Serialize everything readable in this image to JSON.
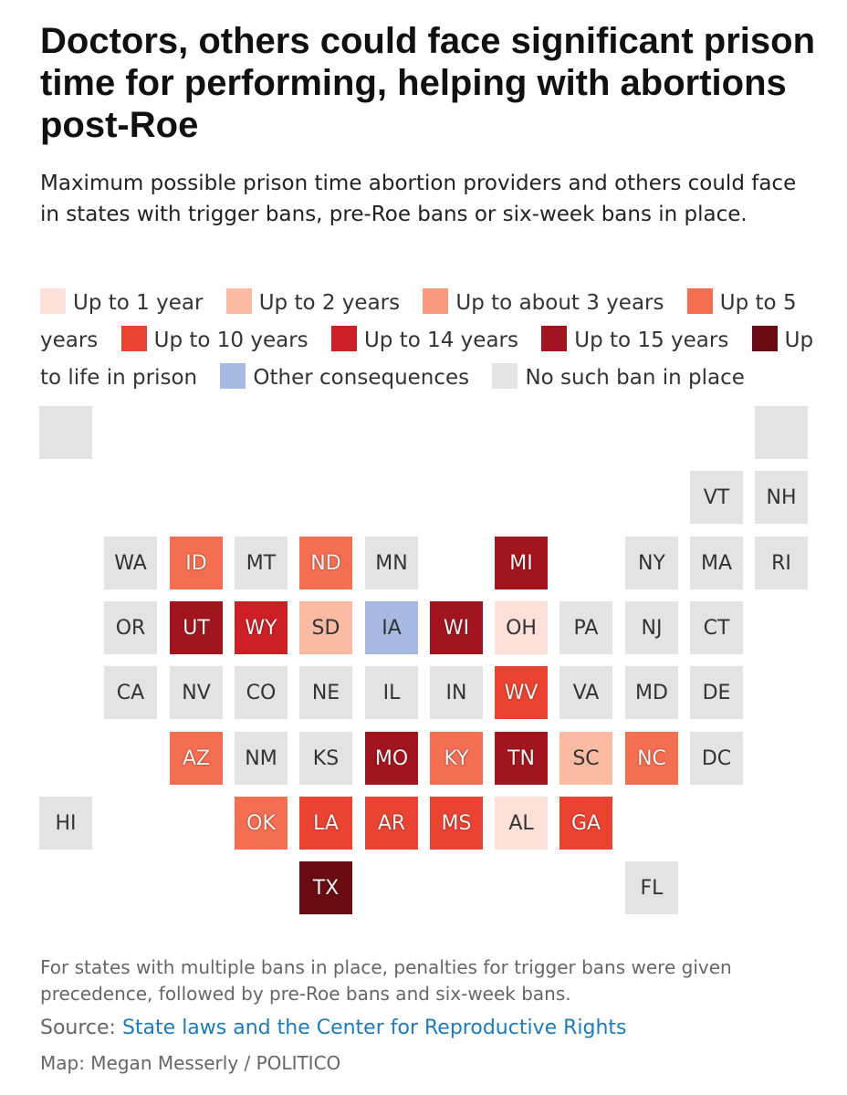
{
  "title": "Doctors, others could face significant prison time for performing, helping with abortions post-Roe",
  "subtitle": "Maximum possible prison time abortion providers and others could face in states with trigger bans, pre-Roe bans or six-week bans in place.",
  "legend": [
    {
      "key": "1yr",
      "label": "Up to 1 year",
      "color": "#fde0d7"
    },
    {
      "key": "2yr",
      "label": "Up to 2 years",
      "color": "#fbbba3"
    },
    {
      "key": "3yr",
      "label": "Up to about 3 years",
      "color": "#f99a7f"
    },
    {
      "key": "5yr",
      "label": "Up to 5 years",
      "color": "#f46e52"
    },
    {
      "key": "10yr",
      "label": "Up to 10 years",
      "color": "#ea4332"
    },
    {
      "key": "14yr",
      "label": "Up to 14 years",
      "color": "#cd1f25"
    },
    {
      "key": "15yr",
      "label": "Up to 15 years",
      "color": "#a3151e"
    },
    {
      "key": "life",
      "label": "Up to life in prison",
      "color": "#6b0b12"
    },
    {
      "key": "other",
      "label": "Other consequences",
      "color": "#a7b9e3"
    },
    {
      "key": "none",
      "label": "No such ban in place",
      "color": "#e3e3e3"
    }
  ],
  "states": [
    {
      "abbr": "",
      "cat": "none",
      "row": 0,
      "col": 0
    },
    {
      "abbr": "",
      "cat": "none",
      "row": 0,
      "col": 11
    },
    {
      "abbr": "VT",
      "cat": "none",
      "row": 1,
      "col": 10
    },
    {
      "abbr": "NH",
      "cat": "none",
      "row": 1,
      "col": 11
    },
    {
      "abbr": "WA",
      "cat": "none",
      "row": 2,
      "col": 1
    },
    {
      "abbr": "ID",
      "cat": "5yr",
      "row": 2,
      "col": 2
    },
    {
      "abbr": "MT",
      "cat": "none",
      "row": 2,
      "col": 3
    },
    {
      "abbr": "ND",
      "cat": "5yr",
      "row": 2,
      "col": 4
    },
    {
      "abbr": "MN",
      "cat": "none",
      "row": 2,
      "col": 5
    },
    {
      "abbr": "MI",
      "cat": "15yr",
      "row": 2,
      "col": 7
    },
    {
      "abbr": "NY",
      "cat": "none",
      "row": 2,
      "col": 9
    },
    {
      "abbr": "MA",
      "cat": "none",
      "row": 2,
      "col": 10
    },
    {
      "abbr": "RI",
      "cat": "none",
      "row": 2,
      "col": 11
    },
    {
      "abbr": "OR",
      "cat": "none",
      "row": 3,
      "col": 1
    },
    {
      "abbr": "UT",
      "cat": "15yr",
      "row": 3,
      "col": 2
    },
    {
      "abbr": "WY",
      "cat": "14yr",
      "row": 3,
      "col": 3
    },
    {
      "abbr": "SD",
      "cat": "2yr",
      "row": 3,
      "col": 4
    },
    {
      "abbr": "IA",
      "cat": "other",
      "row": 3,
      "col": 5
    },
    {
      "abbr": "WI",
      "cat": "15yr",
      "row": 3,
      "col": 6
    },
    {
      "abbr": "OH",
      "cat": "1yr",
      "row": 3,
      "col": 7
    },
    {
      "abbr": "PA",
      "cat": "none",
      "row": 3,
      "col": 8
    },
    {
      "abbr": "NJ",
      "cat": "none",
      "row": 3,
      "col": 9
    },
    {
      "abbr": "CT",
      "cat": "none",
      "row": 3,
      "col": 10
    },
    {
      "abbr": "CA",
      "cat": "none",
      "row": 4,
      "col": 1
    },
    {
      "abbr": "NV",
      "cat": "none",
      "row": 4,
      "col": 2
    },
    {
      "abbr": "CO",
      "cat": "none",
      "row": 4,
      "col": 3
    },
    {
      "abbr": "NE",
      "cat": "none",
      "row": 4,
      "col": 4
    },
    {
      "abbr": "IL",
      "cat": "none",
      "row": 4,
      "col": 5
    },
    {
      "abbr": "IN",
      "cat": "none",
      "row": 4,
      "col": 6
    },
    {
      "abbr": "WV",
      "cat": "10yr",
      "row": 4,
      "col": 7
    },
    {
      "abbr": "VA",
      "cat": "none",
      "row": 4,
      "col": 8
    },
    {
      "abbr": "MD",
      "cat": "none",
      "row": 4,
      "col": 9
    },
    {
      "abbr": "DE",
      "cat": "none",
      "row": 4,
      "col": 10
    },
    {
      "abbr": "AZ",
      "cat": "5yr",
      "row": 5,
      "col": 2
    },
    {
      "abbr": "NM",
      "cat": "none",
      "row": 5,
      "col": 3
    },
    {
      "abbr": "KS",
      "cat": "none",
      "row": 5,
      "col": 4
    },
    {
      "abbr": "MO",
      "cat": "15yr",
      "row": 5,
      "col": 5
    },
    {
      "abbr": "KY",
      "cat": "5yr",
      "row": 5,
      "col": 6
    },
    {
      "abbr": "TN",
      "cat": "15yr",
      "row": 5,
      "col": 7
    },
    {
      "abbr": "SC",
      "cat": "2yr",
      "row": 5,
      "col": 8
    },
    {
      "abbr": "NC",
      "cat": "5yr",
      "row": 5,
      "col": 9
    },
    {
      "abbr": "DC",
      "cat": "none",
      "row": 5,
      "col": 10
    },
    {
      "abbr": "HI",
      "cat": "none",
      "row": 6,
      "col": 0
    },
    {
      "abbr": "OK",
      "cat": "5yr",
      "row": 6,
      "col": 3
    },
    {
      "abbr": "LA",
      "cat": "10yr",
      "row": 6,
      "col": 4
    },
    {
      "abbr": "AR",
      "cat": "10yr",
      "row": 6,
      "col": 5
    },
    {
      "abbr": "MS",
      "cat": "10yr",
      "row": 6,
      "col": 6
    },
    {
      "abbr": "AL",
      "cat": "1yr",
      "row": 6,
      "col": 7
    },
    {
      "abbr": "GA",
      "cat": "10yr",
      "row": 6,
      "col": 8
    },
    {
      "abbr": "TX",
      "cat": "life",
      "row": 7,
      "col": 4
    },
    {
      "abbr": "FL",
      "cat": "none",
      "row": 7,
      "col": 9
    }
  ],
  "footnote": "For states with multiple bans in place, penalties for trigger bans were given precedence, followed by pre-Roe bans and six-week bans.",
  "source_prefix": "Source: ",
  "source_link": "State laws and the Center for Reproductive Rights",
  "byline": "Map: Megan Messerly / POLITICO"
}
